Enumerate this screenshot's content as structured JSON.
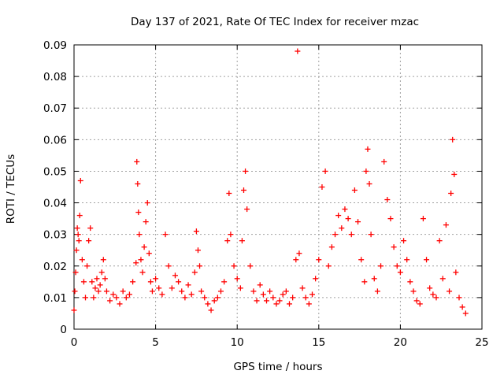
{
  "chart_data": {
    "type": "scatter",
    "title": "Day 137 of 2021, Rate Of TEC Index for receiver mzac",
    "xlabel": "GPS time / hours",
    "ylabel": "ROTI / TECUs",
    "xlim": [
      0,
      25
    ],
    "ylim": [
      0,
      0.09
    ],
    "xticks": [
      0,
      5,
      10,
      15,
      20,
      25
    ],
    "xtick_labels": [
      "0",
      "5",
      "10",
      "15",
      "20",
      "25"
    ],
    "yticks": [
      0,
      0.01,
      0.02,
      0.03,
      0.04,
      0.05,
      0.06,
      0.07,
      0.08,
      0.09
    ],
    "ytick_labels": [
      "0",
      "0.01",
      "0.02",
      "0.03",
      "0.04",
      "0.05",
      "0.06",
      "0.07",
      "0.08",
      "0.09"
    ],
    "grid": true,
    "marker": "+",
    "color": "#ff0000",
    "series": [
      {
        "name": "ROTI",
        "x": [
          0.0,
          0.05,
          0.1,
          0.15,
          0.2,
          0.25,
          0.3,
          0.35,
          0.4,
          0.5,
          0.6,
          0.7,
          0.8,
          0.9,
          1.0,
          1.1,
          1.2,
          1.3,
          1.4,
          1.5,
          1.6,
          1.7,
          1.8,
          1.9,
          2.0,
          2.2,
          2.4,
          2.6,
          2.8,
          3.0,
          3.2,
          3.4,
          3.6,
          3.8,
          3.85,
          3.9,
          3.95,
          4.0,
          4.1,
          4.2,
          4.3,
          4.4,
          4.5,
          4.6,
          4.7,
          4.8,
          5.0,
          5.2,
          5.4,
          5.6,
          5.8,
          6.0,
          6.2,
          6.4,
          6.6,
          6.8,
          7.0,
          7.2,
          7.4,
          7.5,
          7.6,
          7.7,
          7.8,
          8.0,
          8.2,
          8.4,
          8.6,
          8.8,
          9.0,
          9.2,
          9.4,
          9.5,
          9.6,
          9.8,
          10.0,
          10.2,
          10.3,
          10.4,
          10.5,
          10.6,
          10.8,
          11.0,
          11.2,
          11.4,
          11.6,
          11.8,
          12.0,
          12.2,
          12.4,
          12.6,
          12.8,
          13.0,
          13.2,
          13.4,
          13.6,
          13.7,
          13.8,
          14.0,
          14.2,
          14.4,
          14.6,
          14.8,
          15.0,
          15.2,
          15.4,
          15.6,
          15.8,
          16.0,
          16.2,
          16.4,
          16.6,
          16.8,
          17.0,
          17.2,
          17.4,
          17.6,
          17.8,
          17.9,
          18.0,
          18.1,
          18.2,
          18.4,
          18.6,
          18.8,
          19.0,
          19.2,
          19.4,
          19.6,
          19.8,
          20.0,
          20.2,
          20.4,
          20.6,
          20.8,
          21.0,
          21.2,
          21.4,
          21.6,
          21.8,
          22.0,
          22.2,
          22.4,
          22.6,
          22.8,
          23.0,
          23.1,
          23.2,
          23.3,
          23.4,
          23.6,
          23.8,
          24.0
        ],
        "y": [
          0.006,
          0.012,
          0.018,
          0.025,
          0.032,
          0.03,
          0.028,
          0.036,
          0.047,
          0.022,
          0.015,
          0.01,
          0.02,
          0.028,
          0.032,
          0.015,
          0.01,
          0.013,
          0.016,
          0.012,
          0.014,
          0.018,
          0.022,
          0.016,
          0.012,
          0.009,
          0.011,
          0.01,
          0.008,
          0.012,
          0.01,
          0.011,
          0.015,
          0.021,
          0.053,
          0.046,
          0.037,
          0.03,
          0.022,
          0.018,
          0.026,
          0.034,
          0.04,
          0.024,
          0.015,
          0.012,
          0.016,
          0.013,
          0.011,
          0.03,
          0.02,
          0.013,
          0.017,
          0.015,
          0.012,
          0.01,
          0.014,
          0.011,
          0.018,
          0.031,
          0.025,
          0.02,
          0.012,
          0.01,
          0.008,
          0.006,
          0.009,
          0.01,
          0.012,
          0.015,
          0.028,
          0.043,
          0.03,
          0.02,
          0.016,
          0.013,
          0.028,
          0.044,
          0.05,
          0.038,
          0.02,
          0.012,
          0.009,
          0.014,
          0.011,
          0.009,
          0.012,
          0.01,
          0.008,
          0.009,
          0.011,
          0.012,
          0.008,
          0.01,
          0.022,
          0.088,
          0.024,
          0.013,
          0.01,
          0.008,
          0.011,
          0.016,
          0.022,
          0.045,
          0.05,
          0.02,
          0.026,
          0.03,
          0.036,
          0.032,
          0.038,
          0.035,
          0.03,
          0.044,
          0.034,
          0.022,
          0.015,
          0.05,
          0.057,
          0.046,
          0.03,
          0.016,
          0.012,
          0.02,
          0.053,
          0.041,
          0.035,
          0.026,
          0.02,
          0.018,
          0.028,
          0.022,
          0.015,
          0.012,
          0.009,
          0.008,
          0.035,
          0.022,
          0.013,
          0.011,
          0.01,
          0.028,
          0.016,
          0.033,
          0.012,
          0.043,
          0.06,
          0.049,
          0.018,
          0.01,
          0.007,
          0.005
        ]
      }
    ]
  }
}
